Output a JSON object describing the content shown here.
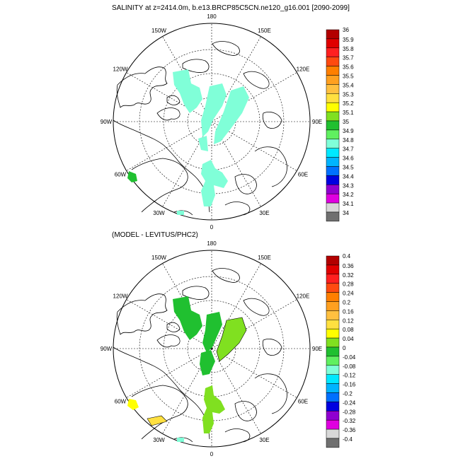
{
  "chart_data": [
    {
      "type": "map",
      "title": "SALINITY at z=2414.0m, b.e13.BRCP85C5CN.ne120_g16.001 [2090-2099]",
      "projection": "north-polar-stereographic",
      "longitude_labels": [
        "180",
        "150E",
        "120E",
        "90E",
        "60E",
        "30E",
        "0",
        "30W",
        "60W",
        "90W",
        "120W",
        "150W"
      ],
      "field_value_shown": 35,
      "colorbar": {
        "levels": [
          "36",
          "35.9",
          "35.8",
          "35.7",
          "35.6",
          "35.5",
          "35.4",
          "35.3",
          "35.2",
          "35.1",
          "35",
          "34.9",
          "34.8",
          "34.7",
          "34.6",
          "34.5",
          "34.4",
          "34.3",
          "34.2",
          "34.1",
          "34"
        ],
        "colors": [
          "#b30000",
          "#e00000",
          "#ff2020",
          "#ff4a10",
          "#ff7f00",
          "#ffa020",
          "#ffc040",
          "#ffe040",
          "#ffff00",
          "#80e020",
          "#20c030",
          "#60f060",
          "#80ffd8",
          "#00e8ff",
          "#00b4ff",
          "#0070ff",
          "#0000e0",
          "#9000d0",
          "#e000e0",
          "#d8d8d8",
          "#707070"
        ]
      }
    },
    {
      "type": "map",
      "title": "(MODEL - LEVITUS/PHC2)",
      "projection": "north-polar-stereographic",
      "longitude_labels": [
        "180",
        "150E",
        "120E",
        "90E",
        "60E",
        "30E",
        "0",
        "30W",
        "60W",
        "90W",
        "120W",
        "150W"
      ],
      "field_value_shown": 0.04,
      "colorbar": {
        "levels": [
          "0.4",
          "0.36",
          "0.32",
          "0.28",
          "0.24",
          "0.2",
          "0.16",
          "0.12",
          "0.08",
          "0.04",
          "0",
          "-0.04",
          "-0.08",
          "-0.12",
          "-0.16",
          "-0.2",
          "-0.24",
          "-0.28",
          "-0.32",
          "-0.36",
          "-0.4"
        ],
        "colors": [
          "#b30000",
          "#e00000",
          "#ff2020",
          "#ff4a10",
          "#ff7f00",
          "#ffa020",
          "#ffc040",
          "#ffe040",
          "#ffff00",
          "#80e020",
          "#20c030",
          "#60f060",
          "#80ffd8",
          "#00e8ff",
          "#00b4ff",
          "#0070ff",
          "#0000e0",
          "#9000d0",
          "#e000e0",
          "#d8d8d8",
          "#707070"
        ]
      }
    }
  ]
}
